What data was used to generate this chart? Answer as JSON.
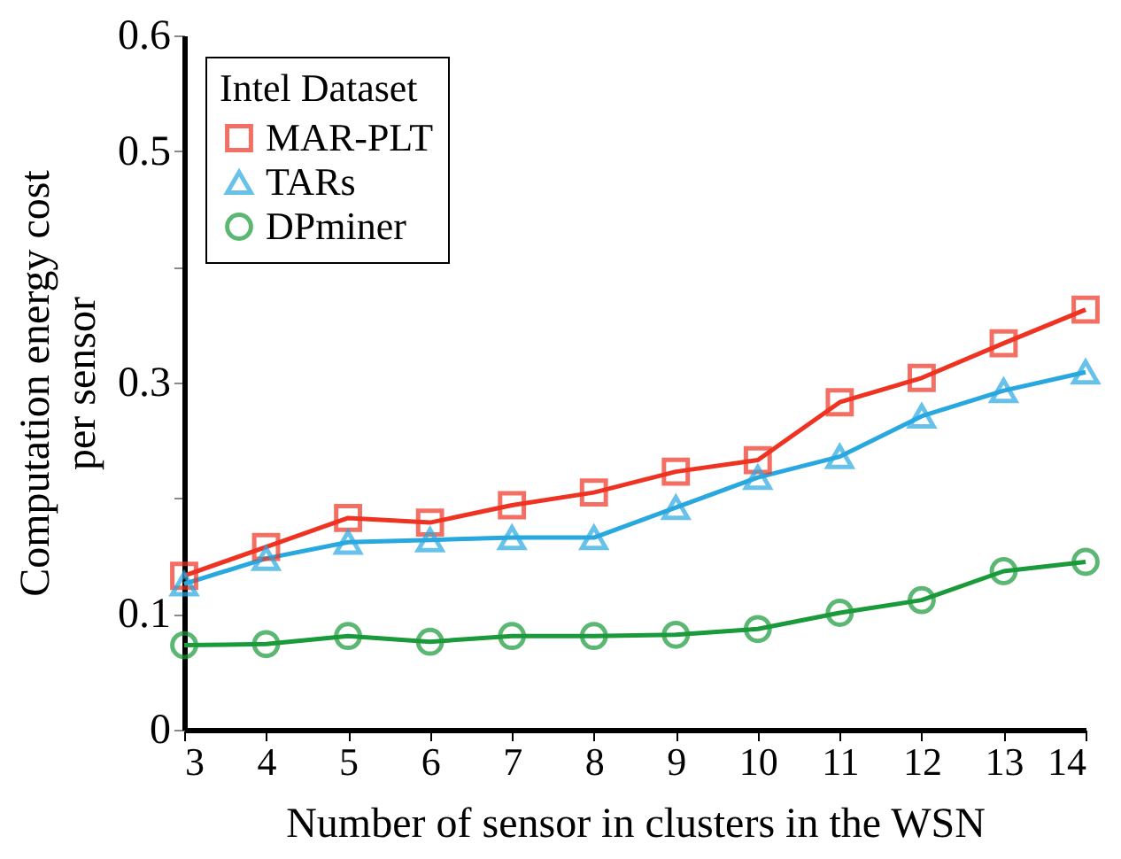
{
  "chart_data": {
    "type": "line",
    "xlabel": "Number of sensor in clusters in the WSN",
    "ylabel": "Computation energy cost\nper sensor",
    "legend_title": "Intel Dataset",
    "legend": "top left",
    "grid": false,
    "x": [
      3,
      4,
      5,
      6,
      7,
      8,
      9,
      10,
      11,
      12,
      13,
      14
    ],
    "xlim": [
      3,
      14
    ],
    "xticks": [
      3,
      4,
      5,
      6,
      7,
      8,
      9,
      10,
      11,
      12,
      13,
      14
    ],
    "ylim": [
      0,
      0.6
    ],
    "yticks": [
      0,
      0.1,
      {
        "value": 0.2,
        "label": null
      },
      0.3,
      {
        "value": 0.4,
        "label": null
      },
      0.5,
      0.6
    ],
    "series": [
      {
        "name": "MAR-PLT",
        "color": "#ee3322",
        "marker": "square",
        "values": [
          0.133,
          0.158,
          0.183,
          0.179,
          0.194,
          0.205,
          0.223,
          0.233,
          0.283,
          0.304,
          0.334,
          0.363
        ]
      },
      {
        "name": "TARs",
        "color": "#29a8e0",
        "marker": "triangle",
        "values": [
          0.126,
          0.148,
          0.162,
          0.164,
          0.166,
          0.166,
          0.192,
          0.218,
          0.236,
          0.271,
          0.293,
          0.309
        ]
      },
      {
        "name": "DPminer",
        "color": "#1a9a3a",
        "marker": "circle",
        "values": [
          0.073,
          0.074,
          0.081,
          0.076,
          0.081,
          0.081,
          0.082,
          0.087,
          0.101,
          0.112,
          0.137,
          0.145
        ]
      }
    ]
  }
}
